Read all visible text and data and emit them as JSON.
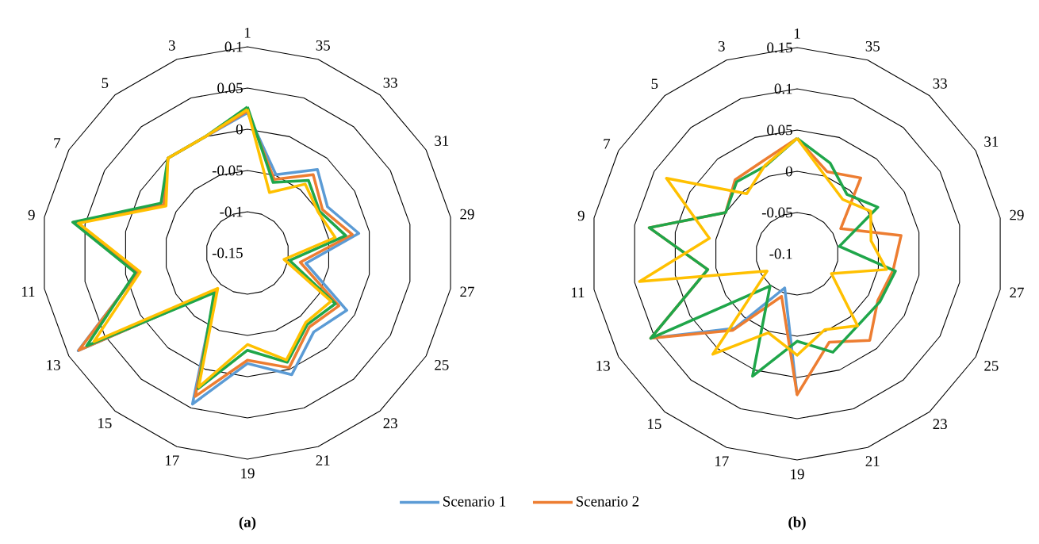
{
  "chart_data": [
    {
      "type": "radar",
      "title": "(a)",
      "categories": [
        "1",
        "35",
        "33",
        "31",
        "29",
        "27",
        "25",
        "23",
        "21",
        "19",
        "17",
        "15",
        "13",
        "11",
        "9",
        "7",
        "5",
        "3"
      ],
      "ylim": [
        -0.15,
        0.1
      ],
      "yticks": [
        -0.15,
        -0.1,
        -0.05,
        0,
        0.05,
        0.1
      ],
      "grid": true,
      "legend": "bottom",
      "series": [
        {
          "name": "Scenario 1",
          "color": "#5b9bd5",
          "values": [
            0.02,
            -0.049,
            -0.018,
            -0.038,
            -0.013,
            -0.078,
            -0.011,
            -0.025,
            0.007,
            -0.016,
            0.045,
            -0.09,
            0.087,
            -0.015,
            0.064,
            -0.033,
            0,
            0
          ]
        },
        {
          "name": "Scenario 2",
          "color": "#ed7d31",
          "values": [
            0.022,
            -0.055,
            -0.026,
            -0.045,
            -0.021,
            -0.085,
            -0.022,
            -0.033,
            -0.002,
            -0.02,
            0.035,
            -0.09,
            0.086,
            -0.015,
            0.064,
            -0.033,
            0,
            0
          ]
        },
        {
          "color": "#1fa64a",
          "values": [
            0.027,
            -0.059,
            -0.035,
            -0.049,
            -0.029,
            -0.098,
            -0.027,
            -0.037,
            -0.009,
            -0.032,
            0.025,
            -0.087,
            0.075,
            -0.012,
            0.065,
            -0.029,
            0,
            0
          ]
        },
        {
          "color": "#ffc000",
          "values": [
            0.024,
            -0.072,
            -0.041,
            -0.051,
            -0.042,
            -0.105,
            -0.033,
            -0.04,
            -0.012,
            -0.039,
            0.023,
            -0.094,
            0.065,
            -0.018,
            0.058,
            -0.036,
            0,
            0
          ]
        }
      ]
    },
    {
      "type": "radar",
      "title": "(b)",
      "categories": [
        "1",
        "35",
        "33",
        "31",
        "29",
        "27",
        "25",
        "23",
        "21",
        "19",
        "17",
        "15",
        "13",
        "11",
        "9",
        "7",
        "5",
        "3"
      ],
      "ylim": [
        -0.1,
        0.15
      ],
      "yticks": [
        -0.1,
        -0.05,
        0,
        0.05,
        0.1,
        0.15
      ],
      "grid": true,
      "series": [
        {
          "color": "#5b9bd5",
          "values": [
            null,
            null,
            null,
            null,
            null,
            null,
            null,
            null,
            null,
            0.071,
            -0.056,
            0.018,
            0.105,
            null,
            null,
            null,
            null,
            null
          ]
        },
        {
          "color": "#ed7d31",
          "values": [
            0.04,
            0.006,
            0.02,
            -0.039,
            0.028,
            0.018,
            0.013,
            0.037,
            0.014,
            0.071,
            -0.045,
            0.021,
            0.105,
            0.01,
            0.082,
            0,
            0.017,
            0.02
          ]
        },
        {
          "color": "#1fa64a",
          "values": [
            0.04,
            0.017,
            -0.006,
            0.013,
            -0.048,
            0.021,
            0.016,
            0.014,
            0.027,
            0.006,
            0.058,
            -0.049,
            0.105,
            0.01,
            0.082,
            0,
            0.014,
            0.013
          ]
        },
        {
          "color": "#ffc000",
          "values": [
            0.04,
            0,
            -0.014,
            0.003,
            -0.009,
            0.01,
            -0.052,
            0.014,
            -0.002,
            0.023,
            0.002,
            0.059,
            -0.058,
            0.094,
            0.008,
            0.083,
            -0.005,
            0.014
          ]
        }
      ]
    }
  ]
}
